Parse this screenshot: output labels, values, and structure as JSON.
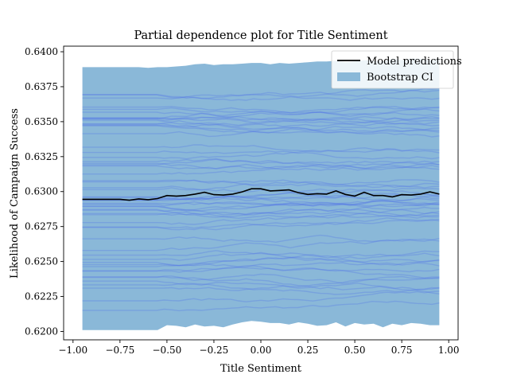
{
  "chart_data": {
    "type": "line",
    "title": "Partial dependence plot for Title Sentiment",
    "xlabel": "Title Sentiment",
    "ylabel": "Likelihood of Campaign Success",
    "xlim": [
      -1.05,
      1.05
    ],
    "ylim": [
      0.6194,
      0.6404
    ],
    "x_ticks": [
      -1.0,
      -0.75,
      -0.5,
      -0.25,
      0.0,
      0.25,
      0.5,
      0.75,
      1.0
    ],
    "x_tick_labels": [
      "−1.00",
      "−0.75",
      "−0.50",
      "−0.25",
      "0.00",
      "0.25",
      "0.50",
      "0.75",
      "1.00"
    ],
    "y_ticks": [
      0.62,
      0.6225,
      0.625,
      0.6275,
      0.63,
      0.6325,
      0.635,
      0.6375,
      0.64
    ],
    "y_tick_labels": [
      "0.6200",
      "0.6225",
      "0.6250",
      "0.6275",
      "0.6300",
      "0.6325",
      "0.6350",
      "0.6375",
      "0.6400"
    ],
    "legend": {
      "position": "top-right",
      "entries": [
        {
          "label": "Model predictions",
          "kind": "line",
          "color": "#000000"
        },
        {
          "label": "Bootstrap CI",
          "kind": "patch",
          "color": "#8ab8d8"
        }
      ]
    },
    "colors": {
      "ci_band": "#8ab8d8",
      "bootstrap_lines": "#4d6bea",
      "model_line": "#000000"
    },
    "x_range": [
      -0.95,
      0.95
    ],
    "bootstrap_lines_count": 60,
    "bootstrap_spread": [
      0.6215,
      0.637
    ],
    "series": [
      {
        "name": "Model predictions",
        "x": [
          -0.95,
          -0.9,
          -0.85,
          -0.8,
          -0.75,
          -0.7,
          -0.65,
          -0.6,
          -0.55,
          -0.5,
          -0.45,
          -0.4,
          -0.35,
          -0.3,
          -0.25,
          -0.2,
          -0.15,
          -0.1,
          -0.05,
          0.0,
          0.05,
          0.1,
          0.15,
          0.2,
          0.25,
          0.3,
          0.35,
          0.4,
          0.45,
          0.5,
          0.55,
          0.6,
          0.65,
          0.7,
          0.75,
          0.8,
          0.85,
          0.9,
          0.95
        ],
        "y": [
          0.62945,
          0.62945,
          0.62945,
          0.62945,
          0.62945,
          0.62938,
          0.62948,
          0.62942,
          0.6295,
          0.62972,
          0.62968,
          0.62972,
          0.62982,
          0.62995,
          0.62978,
          0.62975,
          0.62982,
          0.62998,
          0.6302,
          0.6302,
          0.63005,
          0.63008,
          0.63012,
          0.62992,
          0.6298,
          0.62985,
          0.62982,
          0.63005,
          0.6298,
          0.62968,
          0.62995,
          0.62972,
          0.62972,
          0.62962,
          0.62978,
          0.62975,
          0.62982,
          0.62998,
          0.62982
        ]
      },
      {
        "name": "Bootstrap CI",
        "x": [
          -0.95,
          -0.9,
          -0.85,
          -0.8,
          -0.75,
          -0.7,
          -0.65,
          -0.6,
          -0.55,
          -0.5,
          -0.45,
          -0.4,
          -0.35,
          -0.3,
          -0.25,
          -0.2,
          -0.15,
          -0.1,
          -0.05,
          0.0,
          0.05,
          0.1,
          0.15,
          0.2,
          0.25,
          0.3,
          0.35,
          0.4,
          0.45,
          0.5,
          0.55,
          0.6,
          0.65,
          0.7,
          0.75,
          0.8,
          0.85,
          0.9,
          0.95
        ],
        "upper": [
          0.6389,
          0.6389,
          0.6389,
          0.6389,
          0.6389,
          0.6389,
          0.6389,
          0.63885,
          0.6389,
          0.6389,
          0.63895,
          0.639,
          0.6391,
          0.63915,
          0.63905,
          0.6391,
          0.6391,
          0.63915,
          0.6392,
          0.6392,
          0.6391,
          0.6392,
          0.63915,
          0.6392,
          0.63925,
          0.6393,
          0.6393,
          0.63935,
          0.63925,
          0.6393,
          0.6394,
          0.63935,
          0.6393,
          0.6395,
          0.6394,
          0.6395,
          0.6395,
          0.6394,
          0.6395
        ],
        "lower": [
          0.6201,
          0.6201,
          0.6201,
          0.6201,
          0.6201,
          0.6201,
          0.6201,
          0.6201,
          0.6201,
          0.62045,
          0.6204,
          0.6203,
          0.6205,
          0.62035,
          0.6204,
          0.6203,
          0.6205,
          0.62065,
          0.62075,
          0.6207,
          0.6206,
          0.6206,
          0.6205,
          0.62065,
          0.62055,
          0.6204,
          0.62045,
          0.62065,
          0.62035,
          0.6206,
          0.6205,
          0.62055,
          0.6203,
          0.62055,
          0.62045,
          0.6206,
          0.62055,
          0.62045,
          0.62045
        ]
      }
    ]
  }
}
